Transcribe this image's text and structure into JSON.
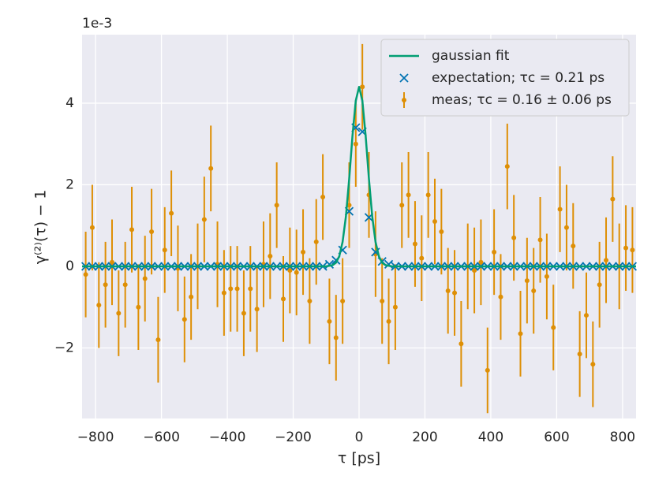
{
  "chart_data": {
    "type": "errorbar",
    "offset_label": "1e-3",
    "x_label": "τ [ps]",
    "y_label": "γ⁽²⁾(τ) − 1",
    "xlim": [
      -841,
      841
    ],
    "ylim": [
      -3.73,
      5.68
    ],
    "xticks": [
      {
        "value": -800,
        "label": "−800"
      },
      {
        "value": -600,
        "label": "−600"
      },
      {
        "value": -400,
        "label": "−400"
      },
      {
        "value": -200,
        "label": "−200"
      },
      0,
      200,
      400,
      600,
      800
    ],
    "yticks": [
      {
        "value": -2,
        "label": "−2"
      },
      0,
      2,
      4
    ],
    "grid": true,
    "legend": "upper right",
    "x": [
      -830,
      -810,
      -790,
      -770,
      -750,
      -730,
      -710,
      -690,
      -670,
      -650,
      -630,
      -610,
      -590,
      -570,
      -550,
      -530,
      -510,
      -490,
      -470,
      -450,
      -430,
      -410,
      -390,
      -370,
      -350,
      -330,
      -310,
      -290,
      -270,
      -250,
      -230,
      -210,
      -190,
      -170,
      -150,
      -130,
      -110,
      -90,
      -70,
      -50,
      -30,
      -10,
      10,
      30,
      50,
      70,
      90,
      110,
      130,
      150,
      170,
      190,
      210,
      230,
      250,
      270,
      290,
      310,
      330,
      350,
      370,
      390,
      410,
      430,
      450,
      470,
      490,
      510,
      530,
      550,
      570,
      590,
      610,
      630,
      650,
      670,
      690,
      710,
      730,
      750,
      770,
      790,
      810,
      830
    ],
    "series": [
      {
        "name": "gaussian fit",
        "kind": "line",
        "color": "#029e73",
        "x": [
          -841,
          -100,
          -80,
          -70,
          -60,
          -50,
          -40,
          -30,
          -20,
          -10,
          0,
          10,
          20,
          30,
          40,
          50,
          60,
          70,
          80,
          100,
          841
        ],
        "values": [
          0,
          0,
          0.03,
          0.09,
          0.25,
          0.6,
          1.22,
          2.14,
          3.2,
          4.06,
          4.4,
          4.06,
          3.2,
          2.14,
          1.22,
          0.6,
          0.25,
          0.09,
          0.03,
          0,
          0
        ]
      },
      {
        "name": "expectation; τc =  0.21 ps",
        "kind": "marker",
        "color": "#0173b2",
        "values": [
          0,
          0,
          0,
          0,
          0,
          0,
          0,
          0,
          0,
          0,
          0,
          0,
          0,
          0,
          0,
          0,
          0,
          0,
          0,
          0,
          0,
          0,
          0,
          0,
          0,
          0,
          0,
          0,
          0,
          0,
          0,
          0,
          0,
          0,
          0,
          0,
          0,
          0.05,
          0.15,
          0.4,
          1.35,
          3.4,
          3.3,
          1.2,
          0.35,
          0.12,
          0.05,
          0,
          0,
          0,
          0,
          0,
          0,
          0,
          0,
          0,
          0,
          0,
          0,
          0,
          0,
          0,
          0,
          0,
          0,
          0,
          0,
          0,
          0,
          0,
          0,
          0,
          0,
          0,
          0,
          0,
          0,
          0,
          0,
          0,
          0,
          0,
          0,
          0
        ]
      },
      {
        "name": "meas; τc =  0.16 ± 0.06 ps",
        "kind": "errorbar",
        "color": "#de8f05",
        "values": [
          -0.2,
          0.95,
          -0.95,
          -0.45,
          0.1,
          -1.15,
          -0.45,
          0.9,
          -1.0,
          -0.3,
          0.85,
          -1.8,
          0.4,
          1.3,
          -0.05,
          -1.3,
          -0.75,
          0.0,
          1.15,
          2.4,
          0.05,
          -0.65,
          -0.55,
          -0.55,
          -1.15,
          -0.55,
          -1.05,
          0.05,
          0.25,
          1.5,
          -0.8,
          -0.1,
          -0.15,
          0.35,
          -0.85,
          0.6,
          1.7,
          -1.35,
          -1.75,
          -0.85,
          1.5,
          3.0,
          4.4,
          1.75,
          0.3,
          -0.85,
          -1.35,
          -1.0,
          1.5,
          1.75,
          0.55,
          0.2,
          1.75,
          1.1,
          0.85,
          -0.6,
          -0.65,
          -1.9,
          0.0,
          -0.1,
          0.1,
          -2.55,
          0.35,
          -0.75,
          2.45,
          0.7,
          -1.65,
          -0.35,
          -0.6,
          0.65,
          -0.25,
          -1.5,
          1.4,
          0.95,
          0.5,
          -2.15,
          -1.2,
          -2.4,
          -0.45,
          0.15,
          1.65,
          0.0,
          0.45,
          0.4
        ],
        "errors": [
          1.05,
          1.05,
          1.05,
          1.05,
          1.05,
          1.05,
          1.05,
          1.05,
          1.05,
          1.05,
          1.05,
          1.05,
          1.05,
          1.05,
          1.05,
          1.05,
          1.05,
          1.05,
          1.05,
          1.05,
          1.05,
          1.05,
          1.05,
          1.05,
          1.05,
          1.05,
          1.05,
          1.05,
          1.05,
          1.05,
          1.05,
          1.05,
          1.05,
          1.05,
          1.05,
          1.05,
          1.05,
          1.05,
          1.05,
          1.05,
          1.05,
          1.05,
          1.05,
          1.05,
          1.05,
          1.05,
          1.05,
          1.05,
          1.05,
          1.05,
          1.05,
          1.05,
          1.05,
          1.05,
          1.05,
          1.05,
          1.05,
          1.05,
          1.05,
          1.05,
          1.05,
          1.05,
          1.05,
          1.05,
          1.05,
          1.05,
          1.05,
          1.05,
          1.05,
          1.05,
          1.05,
          1.05,
          1.05,
          1.05,
          1.05,
          1.05,
          1.05,
          1.05,
          1.05,
          1.05,
          1.05,
          1.05,
          1.05,
          1.05
        ]
      }
    ]
  }
}
